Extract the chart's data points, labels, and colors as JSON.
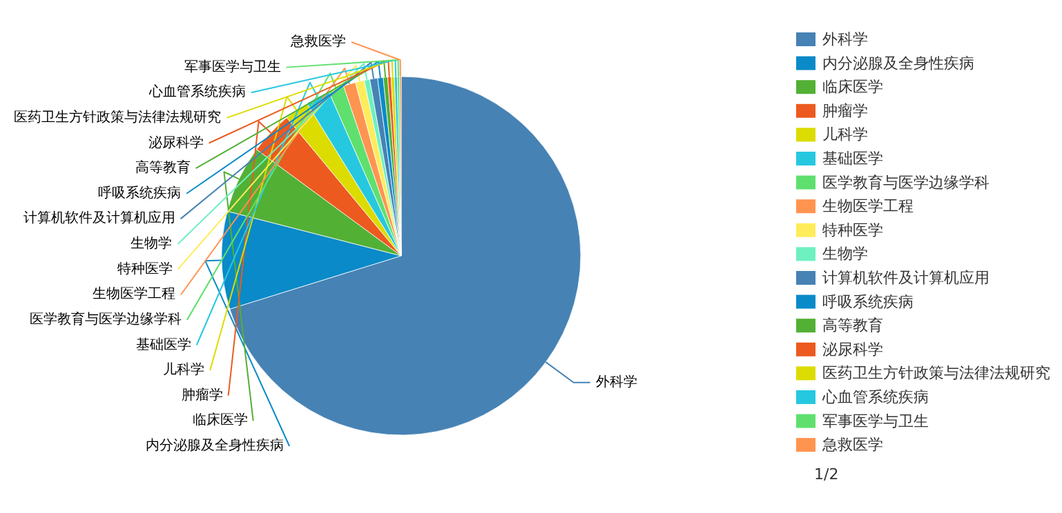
{
  "chart_data": {
    "type": "pie",
    "categories": [
      "外科学",
      "内分泌腺及全身性疾病",
      "临床医学",
      "肿瘤学",
      "儿科学",
      "基础医学",
      "医学教育与医学边缘学科",
      "生物医学工程",
      "特种医学",
      "生物学",
      "计算机软件及计算机应用",
      "呼吸系统疾病",
      "高等教育",
      "泌尿科学",
      "医药卫生方针政策与法律法规研究",
      "心血管系统疾病",
      "军事医学与卫生",
      "急救医学"
    ],
    "values": [
      70.2,
      8.8,
      6.1,
      3.9,
      2.2,
      2.2,
      1.4,
      1.1,
      0.8,
      0.5,
      0.7,
      0.5,
      0.4,
      0.3,
      0.3,
      0.25,
      0.2,
      0.15
    ],
    "colors": [
      "#4682b4",
      "#0a8ac8",
      "#52b035",
      "#ec5a1f",
      "#dcdc00",
      "#26c8e0",
      "#5fe06e",
      "#ff9450",
      "#ffec5a",
      "#6ef0c0",
      "#4682b4",
      "#0a8ac8",
      "#52b035",
      "#ec5a1f",
      "#dcdc00",
      "#26c8e0",
      "#5fe06e",
      "#ff9450"
    ],
    "legend": "right",
    "annotations": [
      "1/2"
    ]
  }
}
